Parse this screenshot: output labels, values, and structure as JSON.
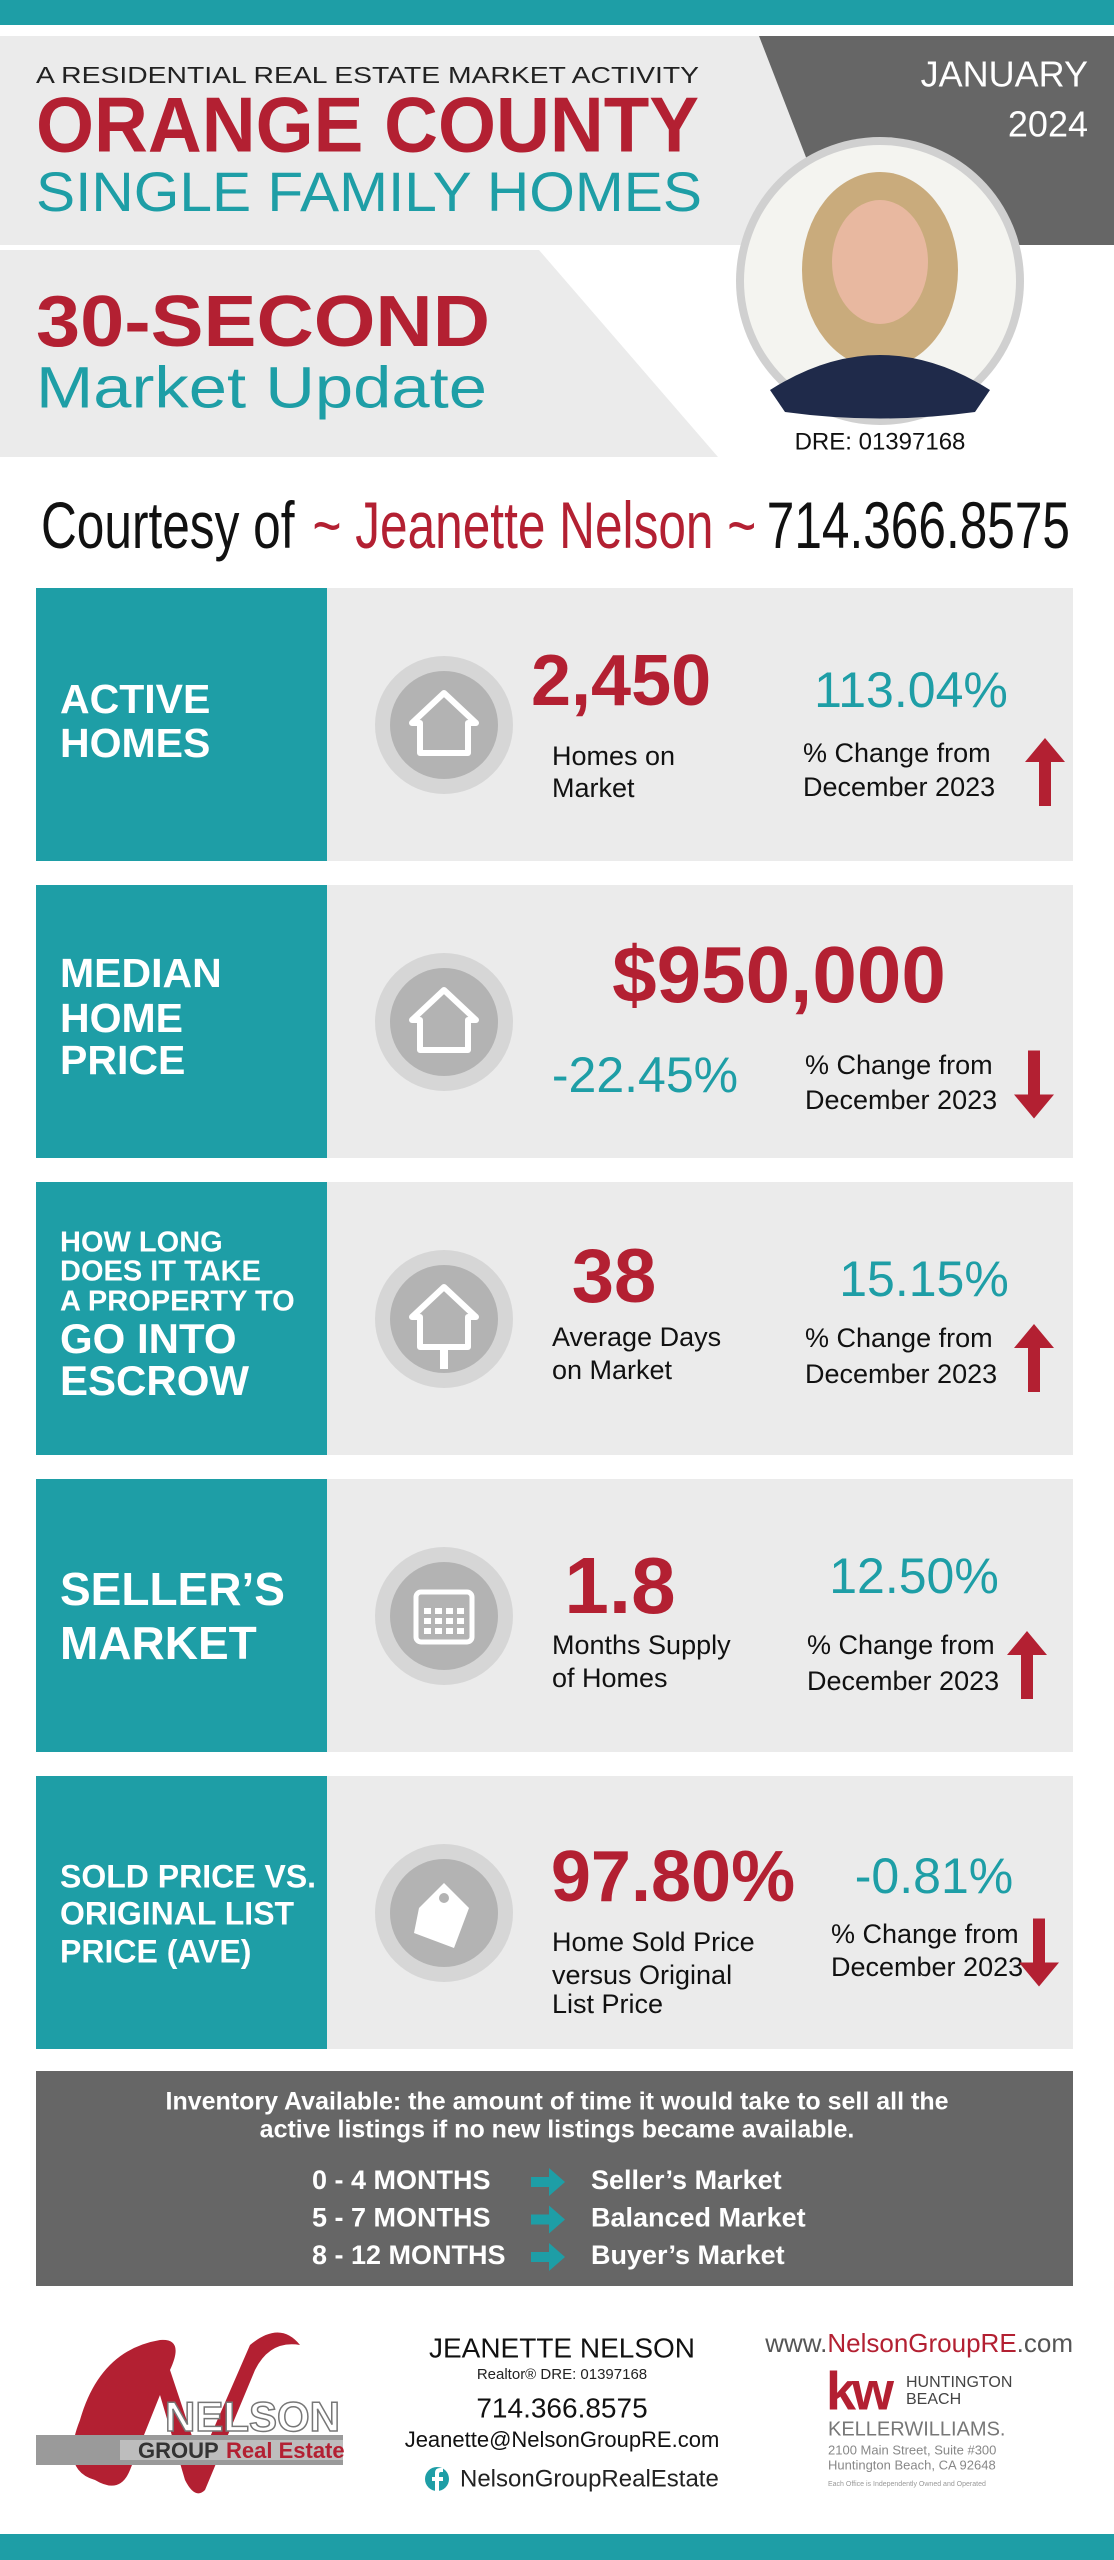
{
  "header": {
    "kicker": "A RESIDENTIAL REAL ESTATE MARKET ACTIVITY",
    "title": "ORANGE COUNTY",
    "subtitle": "SINGLE FAMILY HOMES",
    "month": "JANUARY",
    "year": "2024",
    "update_title": "30-SECOND",
    "update_subtitle": "Market Update",
    "dre": "DRE: 01397168"
  },
  "courtesy": {
    "prefix": "Courtesy of",
    "agent": "~ Jeanette Nelson ~",
    "phone": "714.366.8575"
  },
  "panels": [
    {
      "label": [
        "ACTIVE",
        "HOMES"
      ],
      "value": "2,450",
      "caption": [
        "Homes on",
        "Market"
      ],
      "change": "113.04%",
      "change_caption": [
        "% Change from",
        "December 2023"
      ],
      "direction": "up"
    },
    {
      "label": [
        "MEDIAN",
        "HOME",
        "PRICE"
      ],
      "value": "$950,000",
      "change": "-22.45%",
      "change_caption": [
        "% Change from",
        "December 2023"
      ],
      "direction": "down"
    },
    {
      "label": [
        "HOW LONG",
        "DOES IT TAKE",
        "A PROPERTY TO",
        "GO INTO",
        "ESCROW"
      ],
      "value": "38",
      "caption": [
        "Average Days",
        "on Market"
      ],
      "change": "15.15%",
      "change_caption": [
        "% Change from",
        "December 2023"
      ],
      "direction": "up"
    },
    {
      "label": [
        "SELLER’S",
        "MARKET"
      ],
      "value": "1.8",
      "caption": [
        "Months Supply",
        "of Homes"
      ],
      "change": "12.50%",
      "change_caption": [
        "% Change from",
        "December 2023"
      ],
      "direction": "up"
    },
    {
      "label": [
        "SOLD PRICE VS.",
        "ORIGINAL LIST",
        "PRICE (AVE)"
      ],
      "value": "97.80%",
      "caption": [
        "Home Sold Price",
        "versus Original",
        "List Price"
      ],
      "change": "-0.81%",
      "change_caption": [
        "% Change from",
        "December 2023"
      ],
      "direction": "down"
    }
  ],
  "inventory": {
    "note": [
      "Inventory Available:  the amount of time it would take to sell all the",
      "active listings if no new listings became available."
    ],
    "rows": [
      [
        "0 - 4 MONTHS",
        "Seller’s Market"
      ],
      [
        "5 - 7 MONTHS",
        "Balanced Market"
      ],
      [
        "8 - 12 MONTHS",
        "Buyer’s Market"
      ]
    ]
  },
  "footer": {
    "logo": {
      "name": "NELSON",
      "group": "GROUP",
      "tagline": "Real Estate"
    },
    "agent_name": "JEANETTE NELSON",
    "agent_title": "Realtor®  DRE: 01397168",
    "phone": "714.366.8575",
    "email": "Jeanette@NelsonGroupRE.com",
    "facebook": "NelsonGroupRealEstate",
    "website": {
      "prefix": "www.",
      "domain": "NelsonGroupRE",
      "suffix": ".com"
    },
    "brokerage": {
      "mark": "kw",
      "office": [
        "HUNTINGTON",
        "BEACH"
      ],
      "name": "KELLERWILLIAMS.",
      "address": [
        "2100 Main Street, Suite #300",
        "Huntington Beach, CA 92648"
      ],
      "disclaimer": "Each Office is Independently Owned and Operated"
    }
  }
}
